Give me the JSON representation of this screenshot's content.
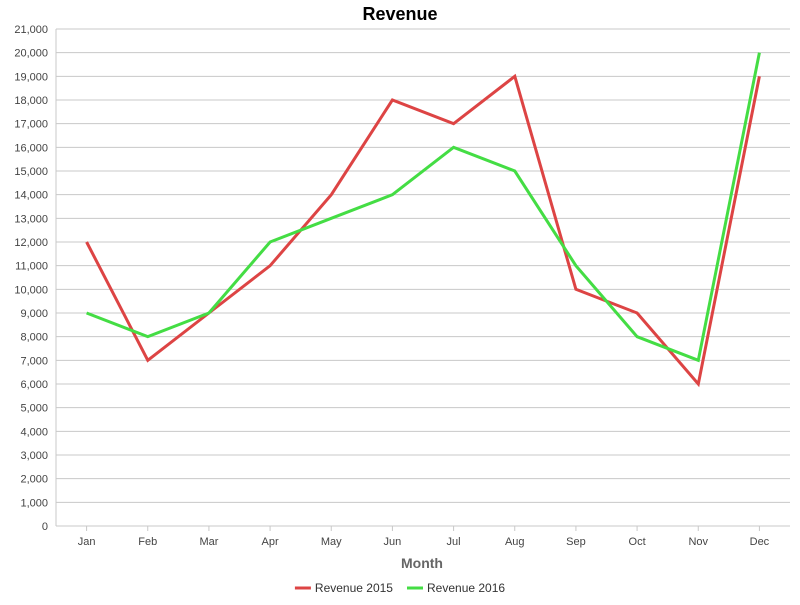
{
  "chart_data": {
    "type": "line",
    "title": "Revenue",
    "xlabel": "Month",
    "ylabel": "",
    "categories": [
      "Jan",
      "Feb",
      "Mar",
      "Apr",
      "May",
      "Jun",
      "Jul",
      "Aug",
      "Sep",
      "Oct",
      "Nov",
      "Dec"
    ],
    "series": [
      {
        "name": "Revenue 2015",
        "color": "#dd4444",
        "values": [
          12000,
          7000,
          9000,
          11000,
          14000,
          18000,
          17000,
          19000,
          10000,
          9000,
          6000,
          19000
        ]
      },
      {
        "name": "Revenue 2016",
        "color": "#44dd44",
        "values": [
          9000,
          8000,
          9000,
          12000,
          13000,
          14000,
          16000,
          15000,
          11000,
          8000,
          7000,
          20000
        ]
      }
    ],
    "ylim": [
      0,
      21000
    ],
    "ytick_step": 1000,
    "grid": true,
    "legend_position": "bottom"
  }
}
